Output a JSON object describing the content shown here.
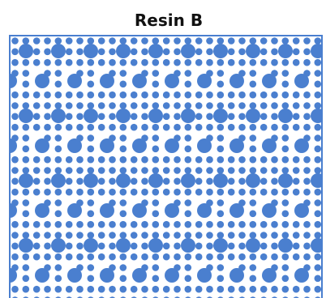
{
  "title": "Resin B"
}
